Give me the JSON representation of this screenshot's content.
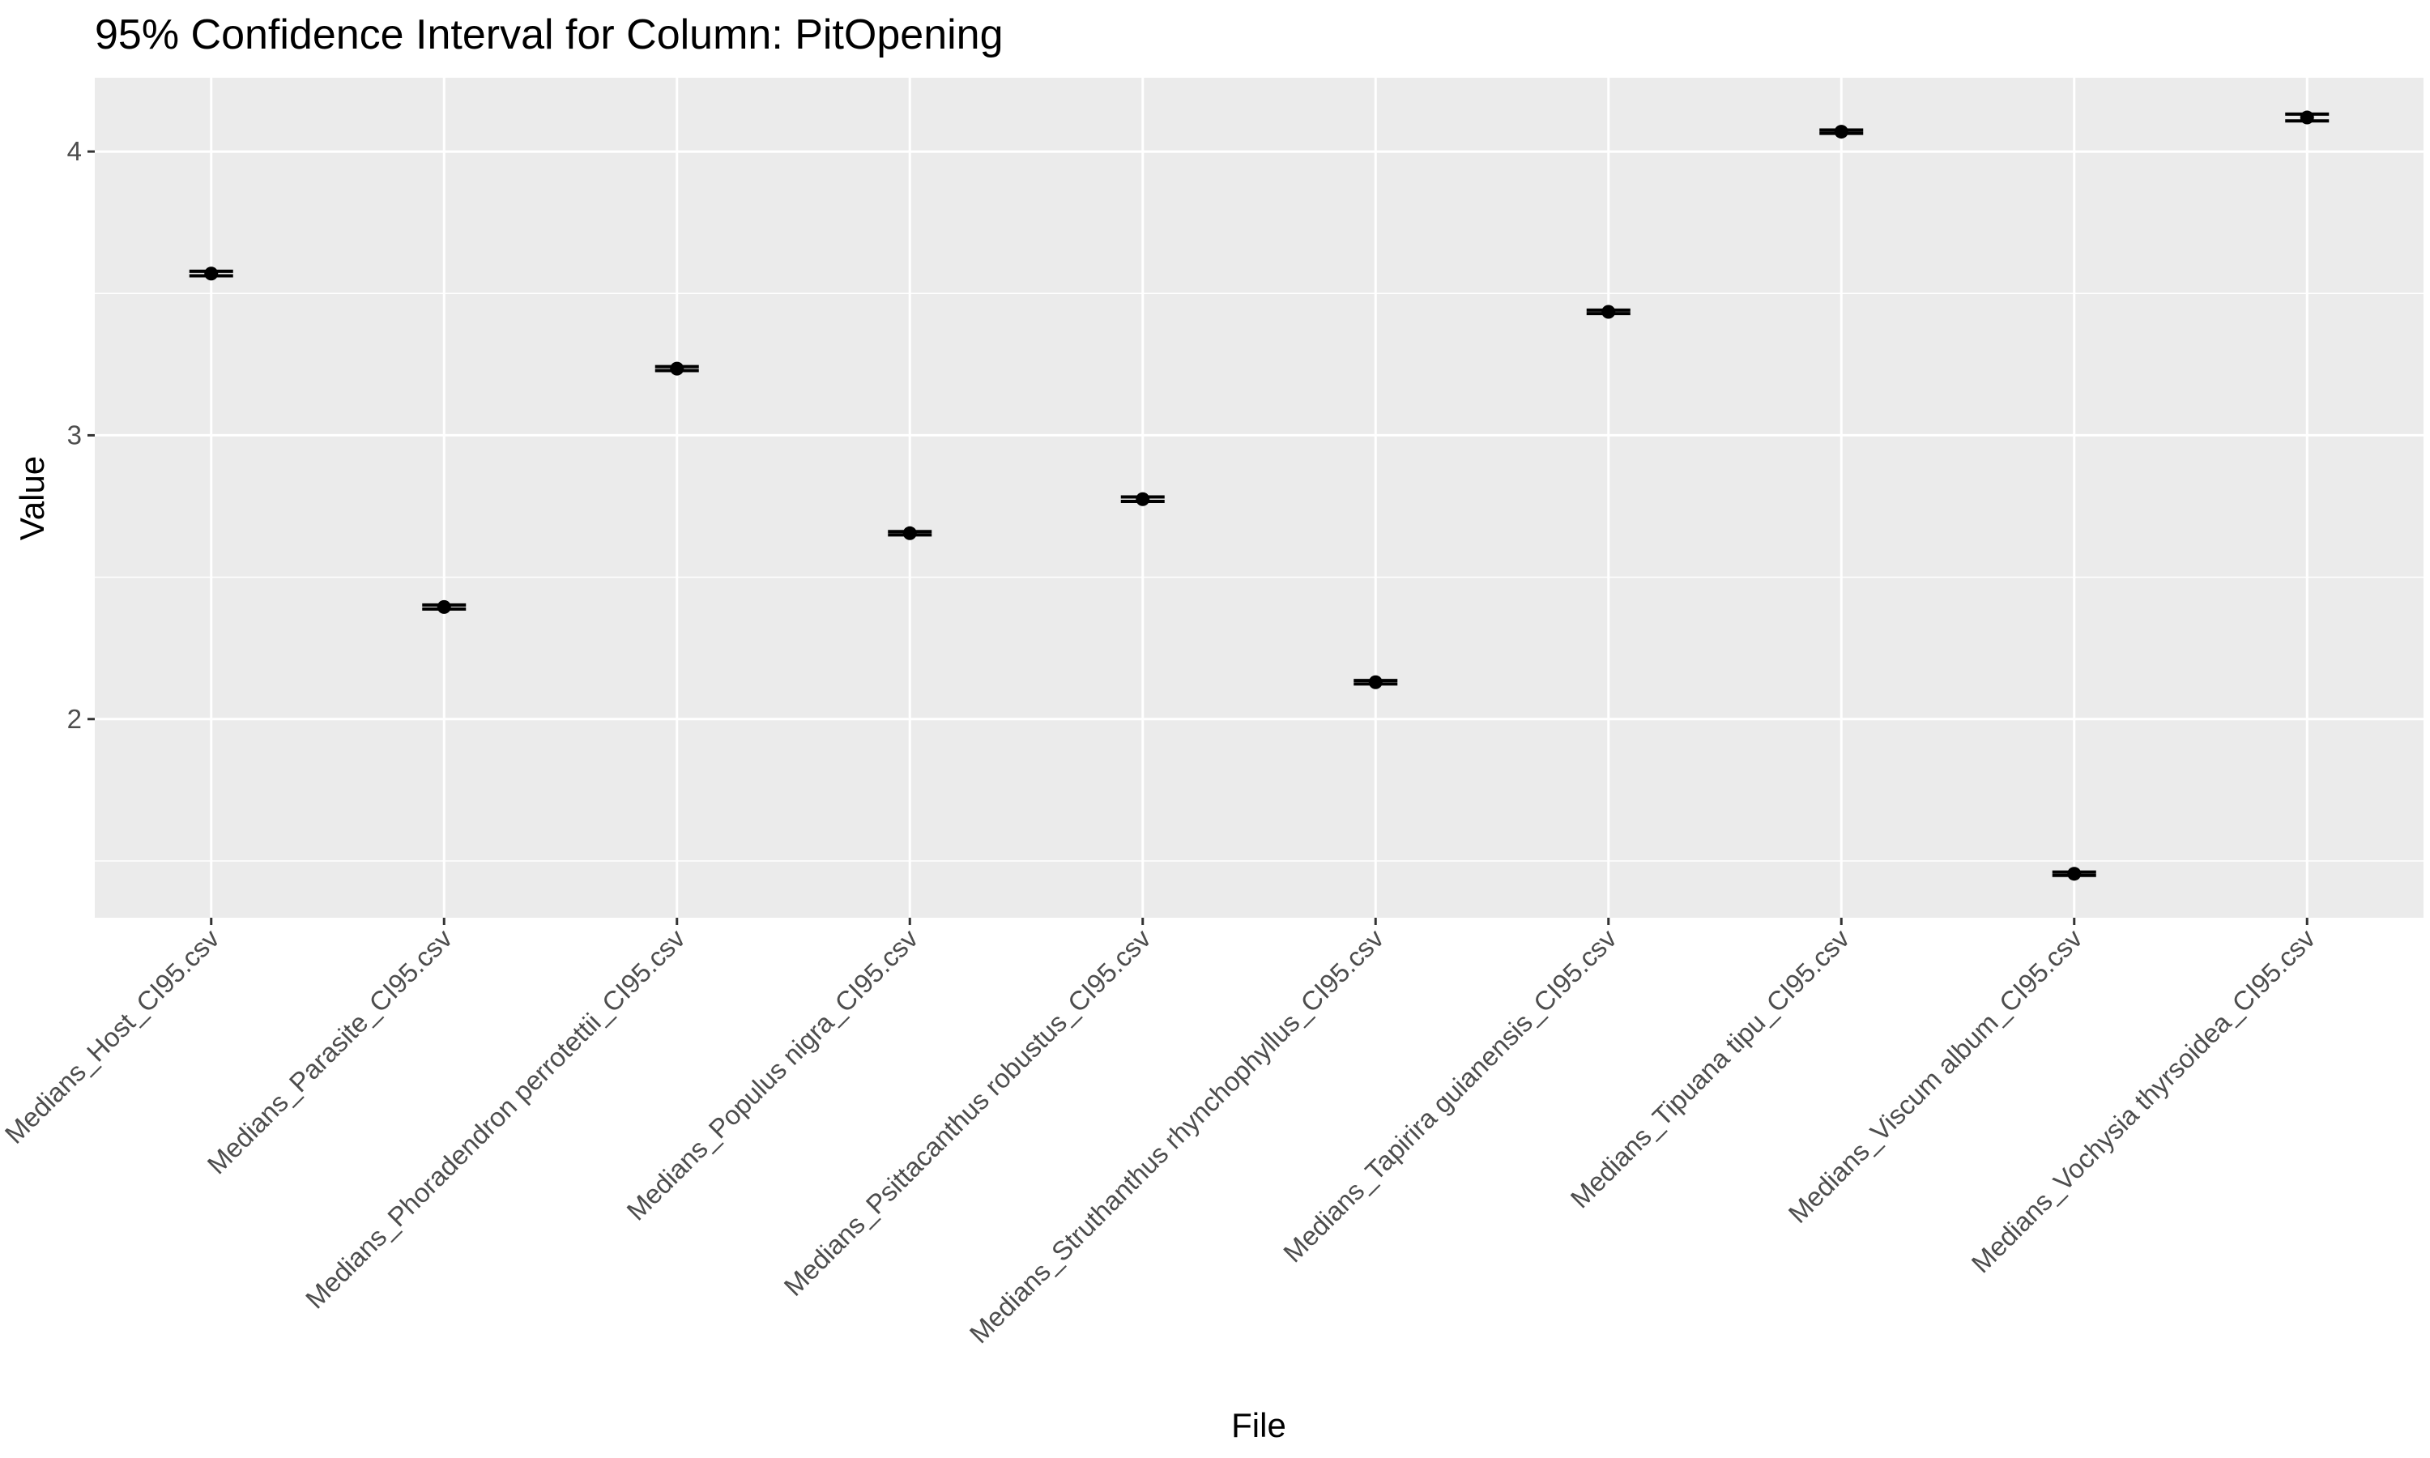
{
  "chart_data": {
    "type": "errorbar",
    "title": "95% Confidence Interval for Column: PitOpening",
    "xlabel": "File",
    "ylabel": "Value",
    "ylim": [
      1.3,
      4.26
    ],
    "yticks": [
      2,
      3,
      4
    ],
    "grid": true,
    "background": "#ebebeb",
    "grid_color": "#ffffff",
    "point_color": "#000000",
    "categories": [
      "Medians_Host_CI95.csv",
      "Medians_Parasite_CI95.csv",
      "Medians_Phoradendron perrotettii_CI95.csv",
      "Medians_Populus nigra_CI95.csv",
      "Medians_Psittacanthus robustus_CI95.csv",
      "Medians_Struthanthus rhynchophyllus_CI95.csv",
      "Medians_Tapirira guianensis_CI95.csv",
      "Medians_Tipuana tipu_CI95.csv",
      "Medians_Viscum album_CI95.csv",
      "Medians_Vochysia thyrsoidea_CI95.csv"
    ],
    "values": [
      3.57,
      2.395,
      3.235,
      2.655,
      2.775,
      2.13,
      3.435,
      4.07,
      1.455,
      4.12
    ],
    "lower": [
      3.562,
      2.388,
      3.228,
      2.649,
      2.767,
      2.124,
      3.429,
      4.064,
      1.449,
      4.108
    ],
    "upper": [
      3.578,
      2.402,
      3.242,
      2.661,
      2.783,
      2.136,
      3.441,
      4.076,
      1.461,
      4.132
    ]
  }
}
